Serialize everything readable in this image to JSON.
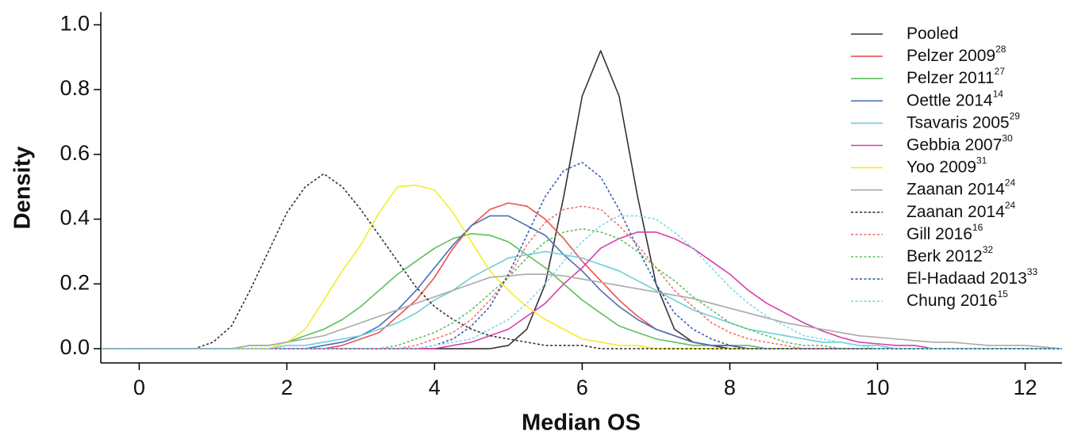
{
  "chart_data": {
    "type": "line",
    "xlabel": "Median OS",
    "ylabel": "Density",
    "xlim": [
      -0.52,
      12.5
    ],
    "ylim": [
      -0.044,
      1.04
    ],
    "xticks": [
      0,
      2,
      4,
      6,
      8,
      10,
      12
    ],
    "yticks": [
      {
        "value": 0,
        "label": "0.0"
      },
      {
        "value": 0.2,
        "label": "0.2"
      },
      {
        "value": 0.4,
        "label": "0.4"
      },
      {
        "value": 0.6,
        "label": "0.6"
      },
      {
        "value": 0.8,
        "label": "0.8"
      },
      {
        "value": 1,
        "label": "1.0"
      }
    ],
    "legend": "upper right",
    "x": [
      -0.5,
      -0.25,
      0,
      0.25,
      0.5,
      0.75,
      1,
      1.25,
      1.5,
      1.75,
      2,
      2.25,
      2.5,
      2.75,
      3,
      3.25,
      3.5,
      3.75,
      4,
      4.25,
      4.5,
      4.75,
      5,
      5.25,
      5.5,
      5.75,
      6,
      6.25,
      6.5,
      6.75,
      7,
      7.25,
      7.5,
      7.75,
      8,
      8.25,
      8.5,
      8.75,
      9,
      9.25,
      9.5,
      9.75,
      10,
      10.25,
      10.5,
      10.75,
      11,
      11.25,
      11.5,
      11.75,
      12,
      12.25,
      12.5
    ],
    "series": [
      {
        "name": "Pooled",
        "color": "#333333",
        "style": "solid",
        "values": [
          0,
          0,
          0,
          0,
          0,
          0,
          0,
          0,
          0,
          0,
          0,
          0,
          0,
          0,
          0,
          0,
          0,
          0,
          0,
          0,
          0,
          0,
          0.01,
          0.06,
          0.2,
          0.47,
          0.78,
          0.92,
          0.78,
          0.47,
          0.2,
          0.06,
          0.02,
          0.01,
          0,
          0,
          0,
          0,
          0,
          0,
          0,
          0,
          0,
          0,
          0,
          0,
          0,
          0,
          0,
          0,
          0,
          0,
          0
        ]
      },
      {
        "name": "Pelzer 2009",
        "sup": "28",
        "color": "#f0504f",
        "style": "solid",
        "values": [
          0,
          0,
          0,
          0,
          0,
          0,
          0,
          0,
          0,
          0,
          0,
          0,
          0,
          0.01,
          0.03,
          0.05,
          0.1,
          0.15,
          0.22,
          0.31,
          0.38,
          0.43,
          0.45,
          0.44,
          0.4,
          0.34,
          0.27,
          0.21,
          0.15,
          0.1,
          0.06,
          0.04,
          0.02,
          0.01,
          0.01,
          0,
          0,
          0,
          0,
          0,
          0,
          0,
          0,
          0,
          0,
          0,
          0,
          0,
          0,
          0,
          0,
          0,
          0
        ]
      },
      {
        "name": "Pelzer 2011",
        "sup": "27",
        "color": "#5cc05c",
        "style": "solid",
        "values": [
          0,
          0,
          0,
          0,
          0,
          0,
          0,
          0,
          0.01,
          0.01,
          0.02,
          0.04,
          0.06,
          0.09,
          0.13,
          0.18,
          0.23,
          0.27,
          0.31,
          0.34,
          0.355,
          0.35,
          0.33,
          0.29,
          0.25,
          0.2,
          0.15,
          0.11,
          0.07,
          0.05,
          0.03,
          0.02,
          0.01,
          0.01,
          0.01,
          0.01,
          0,
          0,
          0,
          0,
          0,
          0,
          0,
          0,
          0,
          0,
          0,
          0,
          0,
          0,
          0,
          0,
          0
        ]
      },
      {
        "name": "Oettle 2014",
        "sup": "14",
        "color": "#4a6fb5",
        "style": "solid",
        "values": [
          0,
          0,
          0,
          0,
          0,
          0,
          0,
          0,
          0,
          0,
          0,
          0,
          0.01,
          0.02,
          0.04,
          0.07,
          0.12,
          0.18,
          0.25,
          0.32,
          0.38,
          0.41,
          0.41,
          0.38,
          0.35,
          0.29,
          0.24,
          0.18,
          0.13,
          0.09,
          0.06,
          0.04,
          0.02,
          0.01,
          0.01,
          0,
          0,
          0,
          0,
          0,
          0,
          0,
          0,
          0,
          0,
          0,
          0,
          0,
          0,
          0,
          0,
          0,
          0
        ]
      },
      {
        "name": "Tsavaris 2005",
        "sup": "29",
        "color": "#6ccfd8",
        "style": "solid",
        "values": [
          0,
          0,
          0,
          0,
          0,
          0,
          0,
          0,
          0,
          0,
          0.01,
          0.01,
          0.02,
          0.03,
          0.04,
          0.06,
          0.08,
          0.11,
          0.15,
          0.18,
          0.22,
          0.25,
          0.28,
          0.29,
          0.3,
          0.29,
          0.28,
          0.26,
          0.24,
          0.21,
          0.18,
          0.15,
          0.12,
          0.1,
          0.08,
          0.06,
          0.05,
          0.04,
          0.03,
          0.02,
          0.02,
          0.01,
          0.01,
          0,
          0,
          0,
          0,
          0,
          0,
          0,
          0,
          0,
          0
        ]
      },
      {
        "name": "Gebbia 2007",
        "sup": "30",
        "color": "#d63fa8",
        "style": "solid",
        "values": [
          0,
          0,
          0,
          0,
          0,
          0,
          0,
          0,
          0,
          0,
          0,
          0,
          0,
          0,
          0,
          0,
          0,
          0,
          0,
          0.01,
          0.02,
          0.04,
          0.06,
          0.1,
          0.14,
          0.2,
          0.25,
          0.31,
          0.34,
          0.36,
          0.36,
          0.34,
          0.31,
          0.27,
          0.23,
          0.18,
          0.14,
          0.11,
          0.08,
          0.055,
          0.035,
          0.02,
          0.015,
          0.01,
          0.01,
          0,
          0,
          0,
          0,
          0,
          0,
          0,
          0
        ]
      },
      {
        "name": "Yoo 2009",
        "sup": "31",
        "color": "#f2ee2a",
        "style": "solid",
        "values": [
          0,
          0,
          0,
          0,
          0,
          0,
          0,
          0,
          0,
          0,
          0.02,
          0.06,
          0.15,
          0.24,
          0.32,
          0.42,
          0.5,
          0.505,
          0.49,
          0.42,
          0.33,
          0.24,
          0.18,
          0.13,
          0.09,
          0.06,
          0.03,
          0.02,
          0.01,
          0.01,
          0,
          0,
          0,
          0,
          0,
          0,
          0,
          0,
          0,
          0,
          0,
          0,
          0,
          0,
          0,
          0,
          0,
          0,
          0,
          0,
          0,
          0,
          0
        ]
      },
      {
        "name": "Zaanan 2014",
        "sup": "24",
        "color": "#aaaaaa",
        "style": "solid",
        "values": [
          0,
          0,
          0,
          0,
          0,
          0,
          0,
          0,
          0.01,
          0.01,
          0.02,
          0.03,
          0.04,
          0.06,
          0.08,
          0.1,
          0.12,
          0.14,
          0.16,
          0.18,
          0.2,
          0.22,
          0.225,
          0.23,
          0.23,
          0.225,
          0.215,
          0.205,
          0.195,
          0.185,
          0.175,
          0.165,
          0.155,
          0.14,
          0.125,
          0.11,
          0.095,
          0.08,
          0.07,
          0.06,
          0.05,
          0.04,
          0.035,
          0.03,
          0.025,
          0.02,
          0.02,
          0.015,
          0.01,
          0.01,
          0.01,
          0.005,
          0
        ]
      },
      {
        "name": "Zaanan 2014",
        "sup": "24",
        "color": "#333333",
        "style": "dotted",
        "values": [
          0,
          0,
          0,
          0,
          0,
          0,
          0.02,
          0.07,
          0.18,
          0.3,
          0.42,
          0.5,
          0.54,
          0.5,
          0.43,
          0.35,
          0.27,
          0.19,
          0.13,
          0.09,
          0.06,
          0.04,
          0.03,
          0.02,
          0.01,
          0.01,
          0.01,
          0,
          0,
          0,
          0,
          0,
          0,
          0,
          0,
          0,
          0,
          0,
          0,
          0,
          0,
          0,
          0,
          0,
          0,
          0,
          0,
          0,
          0,
          0,
          0,
          0,
          0
        ]
      },
      {
        "name": "Gill 2016",
        "sup": "16",
        "color": "#f07070",
        "style": "dotted",
        "values": [
          0,
          0,
          0,
          0,
          0,
          0,
          0,
          0,
          0,
          0,
          0,
          0,
          0,
          0,
          0,
          0,
          0,
          0.01,
          0.03,
          0.05,
          0.09,
          0.15,
          0.22,
          0.32,
          0.39,
          0.43,
          0.44,
          0.43,
          0.38,
          0.32,
          0.25,
          0.18,
          0.13,
          0.08,
          0.05,
          0.03,
          0.02,
          0.01,
          0,
          0,
          0,
          0,
          0,
          0,
          0,
          0,
          0,
          0,
          0,
          0,
          0,
          0,
          0
        ]
      },
      {
        "name": "Berk 2012",
        "sup": "32",
        "color": "#5cc05c",
        "style": "dotted",
        "values": [
          0,
          0,
          0,
          0,
          0,
          0,
          0,
          0,
          0,
          0,
          0,
          0,
          0,
          0,
          0,
          0,
          0.01,
          0.03,
          0.05,
          0.08,
          0.12,
          0.17,
          0.22,
          0.28,
          0.33,
          0.36,
          0.37,
          0.36,
          0.34,
          0.3,
          0.25,
          0.21,
          0.16,
          0.12,
          0.08,
          0.06,
          0.04,
          0.02,
          0.01,
          0.01,
          0,
          0,
          0,
          0,
          0,
          0,
          0,
          0,
          0,
          0,
          0,
          0,
          0
        ]
      },
      {
        "name": "El-Hadaad 2013",
        "sup": "33",
        "color": "#3a5ab5",
        "style": "dotted",
        "values": [
          0,
          0,
          0,
          0,
          0,
          0,
          0,
          0,
          0,
          0,
          0,
          0,
          0,
          0,
          0,
          0,
          0,
          0,
          0.01,
          0.03,
          0.07,
          0.13,
          0.23,
          0.35,
          0.47,
          0.55,
          0.575,
          0.53,
          0.43,
          0.31,
          0.2,
          0.11,
          0.06,
          0.03,
          0.01,
          0,
          0,
          0,
          0,
          0,
          0,
          0,
          0,
          0,
          0,
          0,
          0,
          0,
          0,
          0,
          0,
          0,
          0
        ]
      },
      {
        "name": "Chung 2016",
        "sup": "15",
        "color": "#7fd7e8",
        "style": "dotted",
        "values": [
          0,
          0,
          0,
          0,
          0,
          0,
          0,
          0,
          0,
          0,
          0,
          0,
          0,
          0,
          0,
          0,
          0,
          0,
          0.01,
          0.02,
          0.03,
          0.06,
          0.09,
          0.14,
          0.2,
          0.27,
          0.33,
          0.38,
          0.41,
          0.41,
          0.4,
          0.36,
          0.31,
          0.25,
          0.19,
          0.14,
          0.1,
          0.07,
          0.04,
          0.03,
          0.02,
          0.01,
          0,
          0,
          0,
          0,
          0,
          0,
          0,
          0,
          0,
          0,
          0
        ]
      }
    ]
  }
}
